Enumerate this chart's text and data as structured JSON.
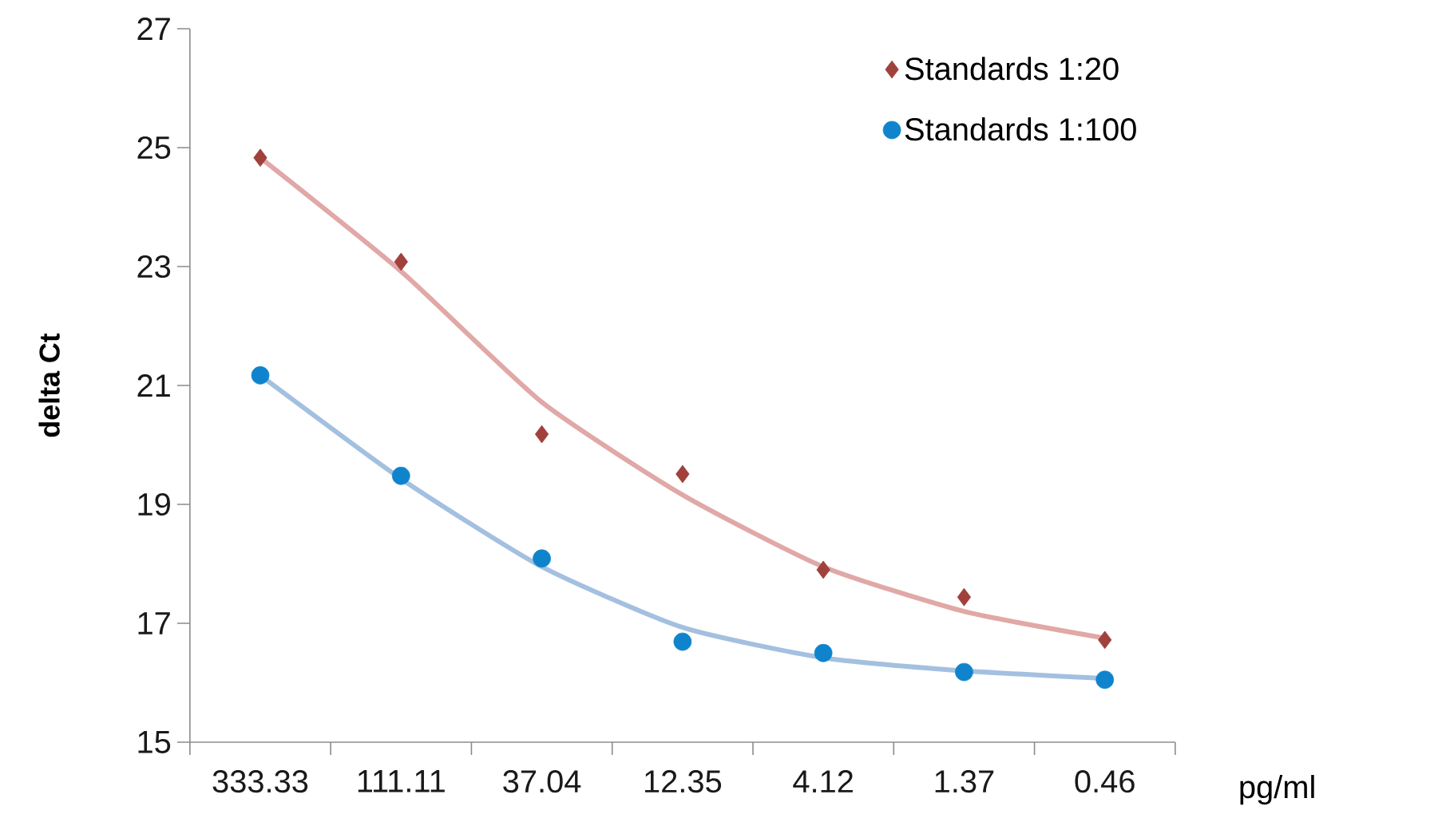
{
  "chart_data": {
    "type": "scatter",
    "xlabel": "pg/ml",
    "ylabel": "delta Ct",
    "categories": [
      "333.33",
      "111.11",
      "37.04",
      "12.35",
      "4.12",
      "1.37",
      "0.46"
    ],
    "series": [
      {
        "name": "Standards 1:20",
        "color": "#a0413c",
        "marker": "diamond",
        "values": [
          24.83,
          23.08,
          20.18,
          19.51,
          17.9,
          17.44,
          16.72
        ]
      },
      {
        "name": "Standards 1:100",
        "color": "#0f84cc",
        "marker": "circle",
        "values": [
          21.17,
          19.48,
          18.09,
          16.69,
          16.5,
          16.18,
          16.05
        ]
      },
      {
        "type": "line",
        "color": "#e0a8a6",
        "marker": "none",
        "values": [
          24.83,
          22.92,
          20.72,
          19.16,
          17.95,
          17.2,
          16.75
        ]
      },
      {
        "type": "line",
        "color": "#a4c0e0",
        "marker": "none",
        "values": [
          21.17,
          19.43,
          17.95,
          16.93,
          16.42,
          16.2,
          16.07
        ]
      }
    ],
    "ylim": [
      15,
      27
    ],
    "yticks": [
      15,
      17,
      19,
      21,
      23,
      25,
      27
    ],
    "grid": false,
    "legend": "top right"
  }
}
